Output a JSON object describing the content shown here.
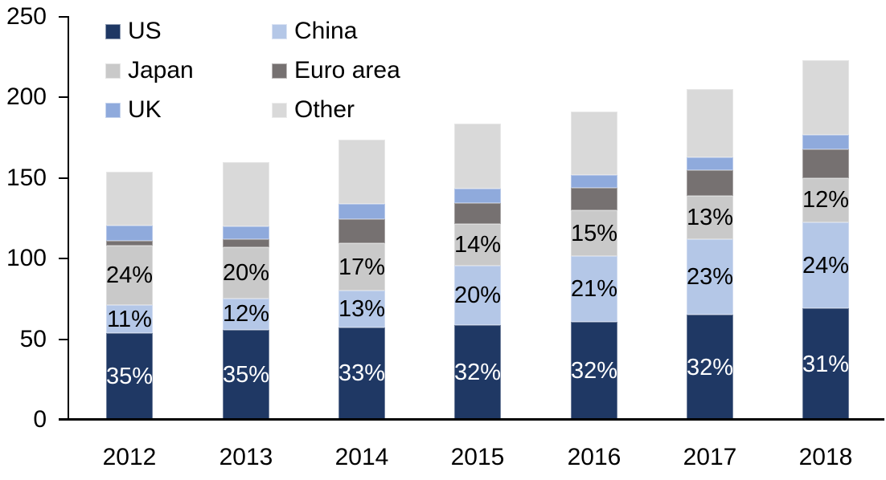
{
  "chart_data": {
    "type": "bar",
    "stacked": true,
    "title": "",
    "background": "#FFFFFF",
    "axis_color": "#000000",
    "gridlines": false,
    "categories": [
      "2012",
      "2013",
      "2014",
      "2015",
      "2016",
      "2017",
      "2018"
    ],
    "series": [
      {
        "name": "US",
        "color": "#1F3864",
        "label_color": "#FFFFFF",
        "values": [
          54,
          56,
          57.5,
          59,
          61,
          65,
          69
        ],
        "labels": [
          "35%",
          "35%",
          "33%",
          "32%",
          "32%",
          "32%",
          "31%"
        ]
      },
      {
        "name": "China",
        "color": "#B4C7E7",
        "label_color": "#000000",
        "values": [
          17,
          19,
          22.5,
          36.5,
          40.5,
          47,
          53.5
        ],
        "labels": [
          "11%",
          "12%",
          "13%",
          "20%",
          "21%",
          "23%",
          "24%"
        ]
      },
      {
        "name": "Japan",
        "color": "#C9C9C9",
        "label_color": "#000000",
        "values": [
          37,
          32,
          29.5,
          26,
          28.5,
          27,
          27.5
        ],
        "labels": [
          "24%",
          "20%",
          "17%",
          "14%",
          "15%",
          "13%",
          "12%"
        ]
      },
      {
        "name": "Euro area",
        "color": "#767171",
        "values": [
          3,
          5,
          15,
          13,
          14,
          16,
          18
        ],
        "labels": []
      },
      {
        "name": "UK",
        "color": "#8FAADC",
        "values": [
          9.5,
          8,
          9.5,
          9,
          8,
          8,
          9
        ],
        "labels": []
      },
      {
        "name": "Other",
        "color": "#D9D9D9",
        "values": [
          33.5,
          40,
          40,
          40.5,
          39,
          42,
          46
        ],
        "labels": []
      }
    ],
    "totals": [
      154,
      160,
      174,
      184,
      191,
      205,
      223
    ],
    "y_axis": {
      "min": 0,
      "max": 250,
      "step": 50,
      "tick_labels": [
        "0",
        "50",
        "100",
        "150",
        "200",
        "250"
      ]
    },
    "x_axis": {
      "tick_labels": [
        "2012",
        "2013",
        "2014",
        "2015",
        "2016",
        "2017",
        "2018"
      ]
    },
    "legend": {
      "position": "top-left",
      "columns": 2,
      "items": [
        "US",
        "China",
        "Japan",
        "Euro area",
        "UK",
        "Other"
      ]
    }
  }
}
